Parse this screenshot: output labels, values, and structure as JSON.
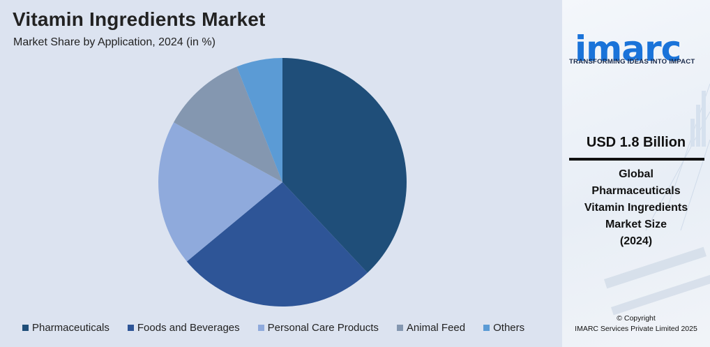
{
  "chart_data": {
    "type": "pie",
    "title": "Vitamin Ingredients Market",
    "subtitle": "Market Share by Application, 2024 (in %)",
    "slices": [
      {
        "label": "Pharmaceuticals",
        "value": 38,
        "color": "#1f4e79"
      },
      {
        "label": "Foods and Beverages",
        "value": 26,
        "color": "#2e5597"
      },
      {
        "label": "Personal Care Products",
        "value": 19,
        "color": "#8faadc"
      },
      {
        "label": "Animal Feed",
        "value": 11,
        "color": "#8497b0"
      },
      {
        "label": "Others",
        "value": 6,
        "color": "#5b9bd5"
      }
    ],
    "legend_placement": "bottom"
  },
  "brand": {
    "logo_text": "imarc",
    "tagline": "TRANSFORMING IDEAS INTO IMPACT",
    "color": "#1a73d9"
  },
  "sidebar": {
    "market_value": "USD 1.8 Billion",
    "description_lines": [
      "Global",
      "Pharmaceuticals",
      "Vitamin Ingredients",
      "Market Size",
      "(2024)"
    ],
    "copyright_lines": [
      "© Copyright",
      "IMARC Services Private Limited 2025"
    ]
  }
}
